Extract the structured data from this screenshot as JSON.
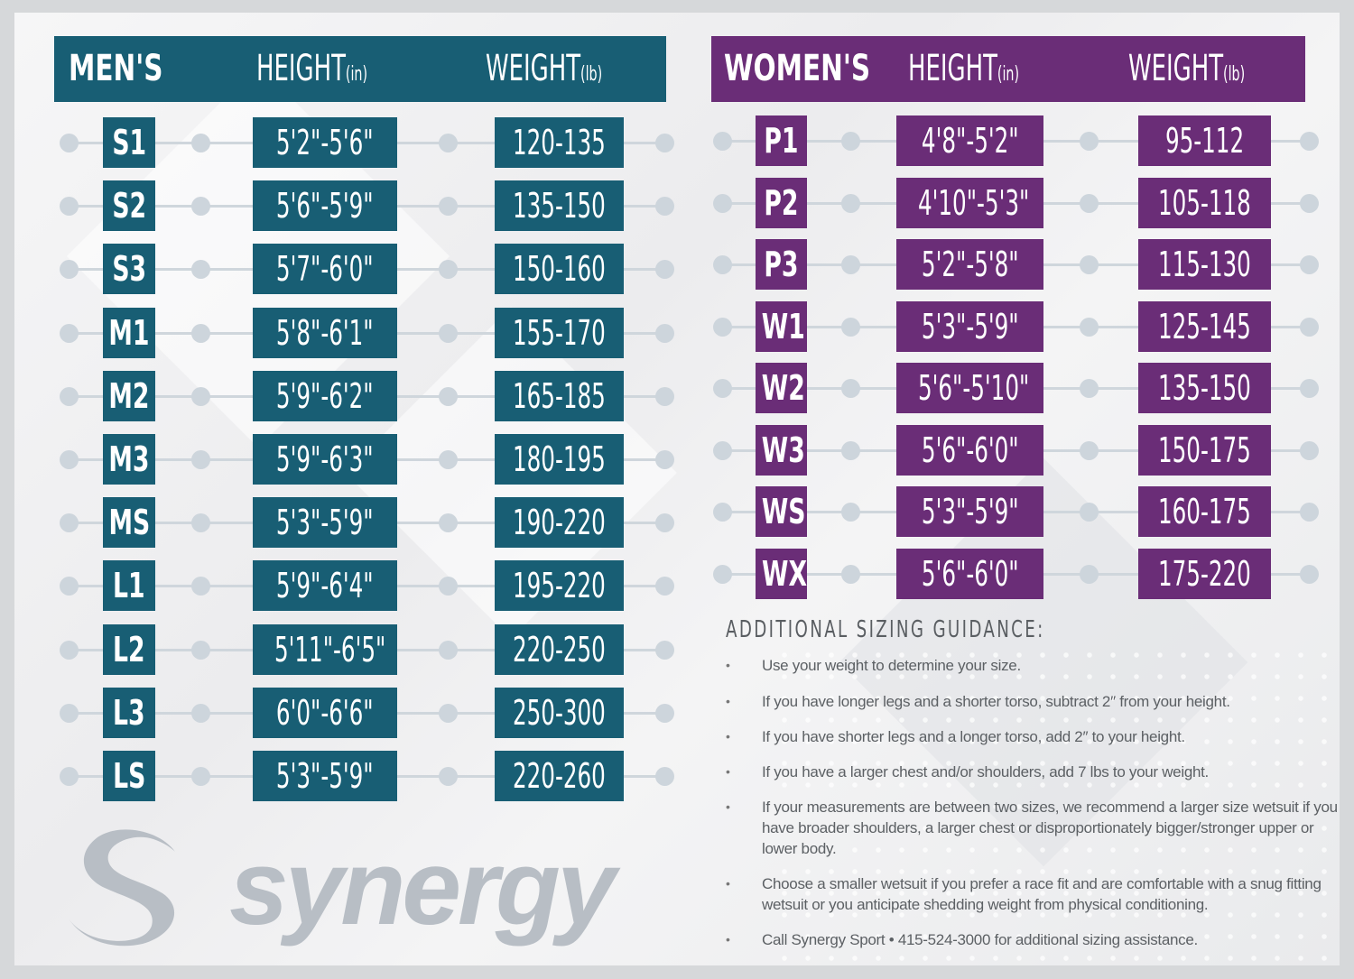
{
  "men": {
    "header": {
      "size": "MEN'S",
      "height": "HEIGHT",
      "height_unit": "(in)",
      "weight": "WEIGHT",
      "weight_unit": "(lb)"
    },
    "color": "#185e74",
    "rows": [
      {
        "size": "S1",
        "height": "5'2\"-5'6\"",
        "weight": "120-135"
      },
      {
        "size": "S2",
        "height": "5'6\"-5'9\"",
        "weight": "135-150"
      },
      {
        "size": "S3",
        "height": "5'7\"-6'0\"",
        "weight": "150-160"
      },
      {
        "size": "M1",
        "height": "5'8\"-6'1\"",
        "weight": "155-170"
      },
      {
        "size": "M2",
        "height": "5'9\"-6'2\"",
        "weight": "165-185"
      },
      {
        "size": "M3",
        "height": "5'9\"-6'3\"",
        "weight": "180-195"
      },
      {
        "size": "MS",
        "height": "5'3\"-5'9\"",
        "weight": "190-220"
      },
      {
        "size": "L1",
        "height": "5'9\"-6'4\"",
        "weight": "195-220"
      },
      {
        "size": "L2",
        "height": "5'11\"-6'5\"",
        "weight": "220-250"
      },
      {
        "size": "L3",
        "height": "6'0\"-6'6\"",
        "weight": "250-300"
      },
      {
        "size": "LS",
        "height": "5'3\"-5'9\"",
        "weight": "220-260"
      }
    ]
  },
  "women": {
    "header": {
      "size": "WOMEN'S",
      "height": "HEIGHT",
      "height_unit": "(in)",
      "weight": "WEIGHT",
      "weight_unit": "(lb)"
    },
    "color": "#6a2d77",
    "rows": [
      {
        "size": "P1",
        "height": "4'8\"-5'2\"",
        "weight": "95-112"
      },
      {
        "size": "P2",
        "height": "4'10\"-5'3\"",
        "weight": "105-118"
      },
      {
        "size": "P3",
        "height": "5'2\"-5'8\"",
        "weight": "115-130"
      },
      {
        "size": "W1",
        "height": "5'3\"-5'9\"",
        "weight": "125-145"
      },
      {
        "size": "W2",
        "height": "5'6\"-5'10\"",
        "weight": "135-150"
      },
      {
        "size": "W3",
        "height": "5'6\"-6'0\"",
        "weight": "150-175"
      },
      {
        "size": "WS",
        "height": "5'3\"-5'9\"",
        "weight": "160-175"
      },
      {
        "size": "WX",
        "height": "5'6\"-6'0\"",
        "weight": "175-220"
      }
    ]
  },
  "guidance": {
    "title": "ADDITIONAL SIZING GUIDANCE:",
    "items": [
      "Use your weight to determine your size.",
      "If you have longer legs and a shorter torso, subtract 2″ from your height.",
      "If you have shorter legs and a longer torso, add 2″ to your height.",
      "If you have a larger chest and/or shoulders, add 7 lbs to your weight.",
      "If your measurements are between two sizes, we recommend a larger size wetsuit if you have broader shoulders, a larger chest or disproportionately bigger/stronger upper or lower body.",
      "Choose a smaller wetsuit if you prefer a race fit and are comfortable with a snug fitting wetsuit or you anticipate shedding weight from physical conditioning.",
      "Call Synergy Sport • 415-524-3000 for additional sizing assistance."
    ]
  },
  "logo": {
    "word": "synergy",
    "icon": "synergy-s-logo-icon",
    "color": "#b8bec5"
  }
}
